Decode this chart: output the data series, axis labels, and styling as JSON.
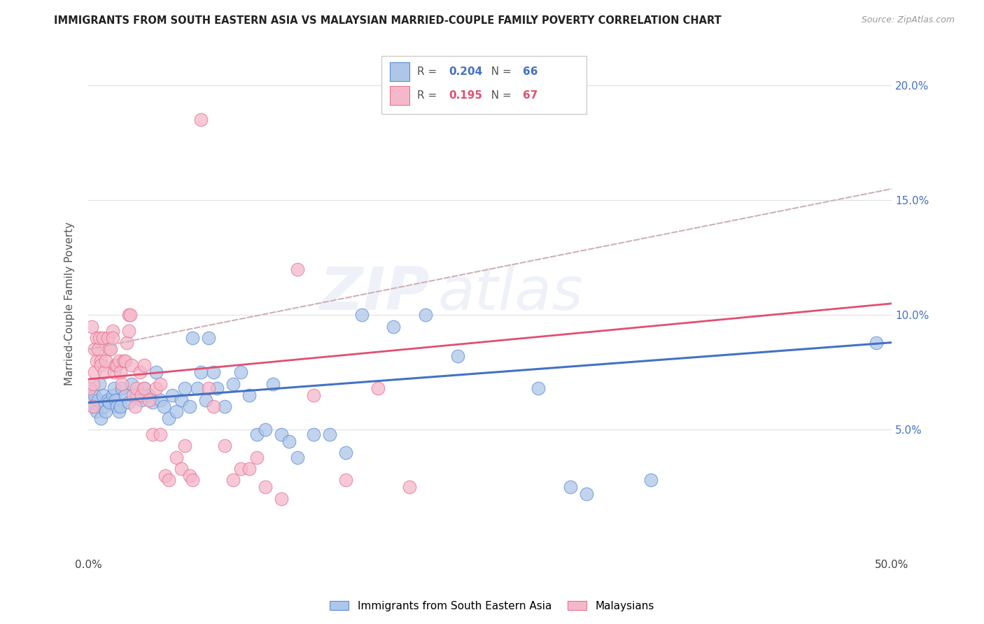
{
  "title": "IMMIGRANTS FROM SOUTH EASTERN ASIA VS MALAYSIAN MARRIED-COUPLE FAMILY POVERTY CORRELATION CHART",
  "source": "Source: ZipAtlas.com",
  "ylabel": "Married-Couple Family Poverty",
  "yticks": [
    0.05,
    0.1,
    0.15,
    0.2
  ],
  "ytick_labels": [
    "5.0%",
    "10.0%",
    "15.0%",
    "20.0%"
  ],
  "xlim": [
    0.0,
    0.5
  ],
  "ylim": [
    -0.005,
    0.215
  ],
  "watermark": "ZIPatlas",
  "legend_blue_R": "0.204",
  "legend_blue_N": "66",
  "legend_pink_R": "0.195",
  "legend_pink_N": "67",
  "blue_fill_color": "#aec6e8",
  "pink_fill_color": "#f5b8cb",
  "blue_edge_color": "#5b8dd9",
  "pink_edge_color": "#e8728f",
  "blue_line_color": "#4472c4",
  "pink_line_color": "#e05070",
  "dashed_line_color": "#d0b0b8",
  "blue_scatter": [
    [
      0.001,
      0.068
    ],
    [
      0.002,
      0.062
    ],
    [
      0.003,
      0.06
    ],
    [
      0.004,
      0.065
    ],
    [
      0.005,
      0.058
    ],
    [
      0.006,
      0.063
    ],
    [
      0.007,
      0.07
    ],
    [
      0.008,
      0.055
    ],
    [
      0.009,
      0.065
    ],
    [
      0.01,
      0.06
    ],
    [
      0.011,
      0.058
    ],
    [
      0.012,
      0.063
    ],
    [
      0.013,
      0.062
    ],
    [
      0.015,
      0.065
    ],
    [
      0.016,
      0.068
    ],
    [
      0.017,
      0.063
    ],
    [
      0.018,
      0.06
    ],
    [
      0.019,
      0.058
    ],
    [
      0.02,
      0.06
    ],
    [
      0.021,
      0.068
    ],
    [
      0.023,
      0.065
    ],
    [
      0.025,
      0.062
    ],
    [
      0.027,
      0.07
    ],
    [
      0.03,
      0.065
    ],
    [
      0.033,
      0.063
    ],
    [
      0.035,
      0.068
    ],
    [
      0.038,
      0.065
    ],
    [
      0.04,
      0.062
    ],
    [
      0.042,
      0.075
    ],
    [
      0.045,
      0.063
    ],
    [
      0.047,
      0.06
    ],
    [
      0.05,
      0.055
    ],
    [
      0.052,
      0.065
    ],
    [
      0.055,
      0.058
    ],
    [
      0.058,
      0.063
    ],
    [
      0.06,
      0.068
    ],
    [
      0.063,
      0.06
    ],
    [
      0.065,
      0.09
    ],
    [
      0.068,
      0.068
    ],
    [
      0.07,
      0.075
    ],
    [
      0.073,
      0.063
    ],
    [
      0.075,
      0.09
    ],
    [
      0.078,
      0.075
    ],
    [
      0.08,
      0.068
    ],
    [
      0.085,
      0.06
    ],
    [
      0.09,
      0.07
    ],
    [
      0.095,
      0.075
    ],
    [
      0.1,
      0.065
    ],
    [
      0.105,
      0.048
    ],
    [
      0.11,
      0.05
    ],
    [
      0.115,
      0.07
    ],
    [
      0.12,
      0.048
    ],
    [
      0.125,
      0.045
    ],
    [
      0.13,
      0.038
    ],
    [
      0.14,
      0.048
    ],
    [
      0.15,
      0.048
    ],
    [
      0.16,
      0.04
    ],
    [
      0.17,
      0.1
    ],
    [
      0.19,
      0.095
    ],
    [
      0.21,
      0.1
    ],
    [
      0.23,
      0.082
    ],
    [
      0.28,
      0.068
    ],
    [
      0.3,
      0.025
    ],
    [
      0.31,
      0.022
    ],
    [
      0.35,
      0.028
    ],
    [
      0.49,
      0.088
    ]
  ],
  "pink_scatter": [
    [
      0.001,
      0.068
    ],
    [
      0.002,
      0.095
    ],
    [
      0.003,
      0.06
    ],
    [
      0.003,
      0.07
    ],
    [
      0.004,
      0.085
    ],
    [
      0.004,
      0.075
    ],
    [
      0.005,
      0.09
    ],
    [
      0.005,
      0.08
    ],
    [
      0.006,
      0.085
    ],
    [
      0.007,
      0.09
    ],
    [
      0.008,
      0.08
    ],
    [
      0.008,
      0.078
    ],
    [
      0.009,
      0.09
    ],
    [
      0.01,
      0.075
    ],
    [
      0.011,
      0.08
    ],
    [
      0.012,
      0.09
    ],
    [
      0.013,
      0.085
    ],
    [
      0.014,
      0.085
    ],
    [
      0.015,
      0.093
    ],
    [
      0.015,
      0.09
    ],
    [
      0.016,
      0.075
    ],
    [
      0.017,
      0.078
    ],
    [
      0.018,
      0.078
    ],
    [
      0.019,
      0.08
    ],
    [
      0.02,
      0.075
    ],
    [
      0.021,
      0.07
    ],
    [
      0.022,
      0.08
    ],
    [
      0.023,
      0.08
    ],
    [
      0.024,
      0.088
    ],
    [
      0.025,
      0.093
    ],
    [
      0.025,
      0.1
    ],
    [
      0.026,
      0.1
    ],
    [
      0.027,
      0.078
    ],
    [
      0.028,
      0.065
    ],
    [
      0.029,
      0.06
    ],
    [
      0.03,
      0.068
    ],
    [
      0.032,
      0.075
    ],
    [
      0.033,
      0.065
    ],
    [
      0.035,
      0.078
    ],
    [
      0.035,
      0.068
    ],
    [
      0.038,
      0.063
    ],
    [
      0.04,
      0.048
    ],
    [
      0.042,
      0.068
    ],
    [
      0.045,
      0.07
    ],
    [
      0.045,
      0.048
    ],
    [
      0.048,
      0.03
    ],
    [
      0.05,
      0.028
    ],
    [
      0.055,
      0.038
    ],
    [
      0.058,
      0.033
    ],
    [
      0.06,
      0.043
    ],
    [
      0.063,
      0.03
    ],
    [
      0.065,
      0.028
    ],
    [
      0.07,
      0.185
    ],
    [
      0.075,
      0.068
    ],
    [
      0.078,
      0.06
    ],
    [
      0.085,
      0.043
    ],
    [
      0.09,
      0.028
    ],
    [
      0.095,
      0.033
    ],
    [
      0.1,
      0.033
    ],
    [
      0.105,
      0.038
    ],
    [
      0.11,
      0.025
    ],
    [
      0.12,
      0.02
    ],
    [
      0.13,
      0.12
    ],
    [
      0.14,
      0.065
    ],
    [
      0.16,
      0.028
    ],
    [
      0.18,
      0.068
    ],
    [
      0.2,
      0.025
    ]
  ],
  "blue_line": [
    [
      0.0,
      0.0618
    ],
    [
      0.5,
      0.088
    ]
  ],
  "pink_line": [
    [
      0.0,
      0.072
    ],
    [
      0.5,
      0.105
    ]
  ],
  "pink_dashed_line": [
    [
      0.0,
      0.085
    ],
    [
      0.5,
      0.155
    ]
  ],
  "background_color": "#ffffff",
  "grid_color": "#e0e0e0",
  "title_color": "#222222",
  "axis_label_color": "#555555",
  "right_axis_color": "#4472c4"
}
